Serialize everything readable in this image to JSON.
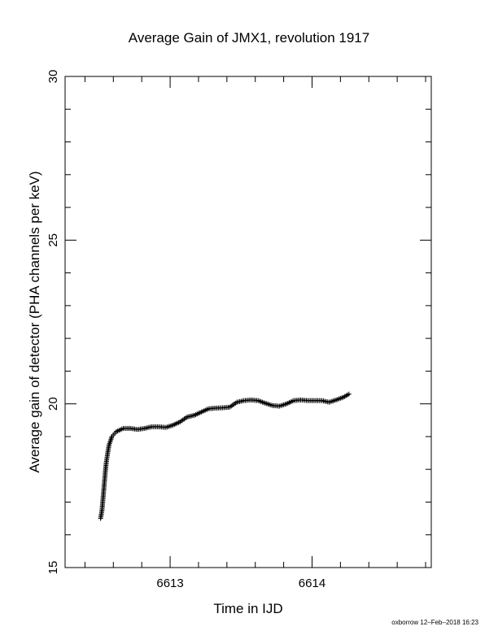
{
  "chart_data": {
    "type": "scatter",
    "title": "Average Gain of JMX1, revolution 1917",
    "xlabel": "Time in IJD",
    "ylabel": "Average gain of detector (PHA channels per keV)",
    "xlim": [
      6612.26,
      6614.84
    ],
    "ylim": [
      15,
      30
    ],
    "x_ticks": [
      6613,
      6614
    ],
    "x_tick_labels": [
      "6613",
      "6614"
    ],
    "y_ticks": [
      15,
      20,
      25,
      30
    ],
    "y_tick_labels": [
      "15",
      "20",
      "25",
      "30"
    ],
    "marker": "plus",
    "grid": false,
    "series": [
      {
        "points": [
          [
            6612.51,
            16.5
          ],
          [
            6612.52,
            16.75
          ],
          [
            6612.525,
            17.0
          ],
          [
            6612.53,
            17.25
          ],
          [
            6612.535,
            17.5
          ],
          [
            6612.54,
            17.75
          ],
          [
            6612.545,
            18.0
          ],
          [
            6612.55,
            18.2
          ],
          [
            6612.56,
            18.5
          ],
          [
            6612.57,
            18.75
          ],
          [
            6612.59,
            19.0
          ],
          [
            6612.62,
            19.15
          ],
          [
            6612.67,
            19.25
          ],
          [
            6612.72,
            19.25
          ],
          [
            6612.77,
            19.22
          ],
          [
            6612.82,
            19.25
          ],
          [
            6612.87,
            19.3
          ],
          [
            6612.92,
            19.3
          ],
          [
            6612.97,
            19.28
          ],
          [
            6613.02,
            19.35
          ],
          [
            6613.07,
            19.45
          ],
          [
            6613.12,
            19.6
          ],
          [
            6613.17,
            19.65
          ],
          [
            6613.22,
            19.75
          ],
          [
            6613.27,
            19.85
          ],
          [
            6613.32,
            19.87
          ],
          [
            6613.37,
            19.88
          ],
          [
            6613.42,
            19.9
          ],
          [
            6613.47,
            20.05
          ],
          [
            6613.52,
            20.1
          ],
          [
            6613.57,
            20.12
          ],
          [
            6613.62,
            20.1
          ],
          [
            6613.67,
            20.02
          ],
          [
            6613.72,
            19.95
          ],
          [
            6613.77,
            19.93
          ],
          [
            6613.82,
            20.0
          ],
          [
            6613.87,
            20.1
          ],
          [
            6613.92,
            20.12
          ],
          [
            6613.97,
            20.1
          ],
          [
            6614.02,
            20.1
          ],
          [
            6614.07,
            20.1
          ],
          [
            6614.12,
            20.05
          ],
          [
            6614.17,
            20.12
          ],
          [
            6614.22,
            20.2
          ],
          [
            6614.26,
            20.3
          ]
        ]
      }
    ]
  },
  "footer": {
    "text": "oxborrow 12–Feb–2018 16:23"
  }
}
